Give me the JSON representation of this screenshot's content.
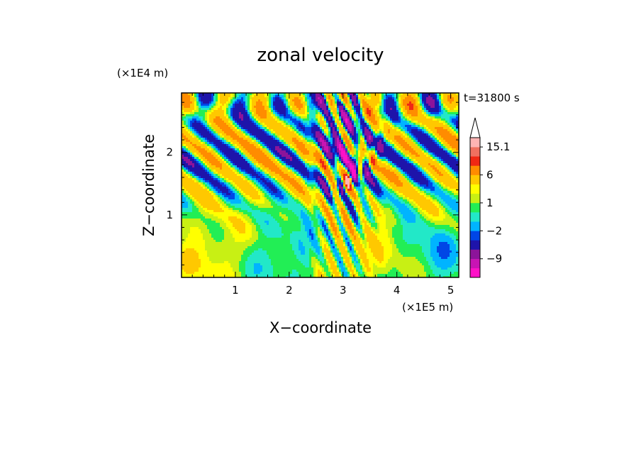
{
  "chart_data": {
    "type": "heatmap",
    "title": "zonal velocity",
    "xlabel": "X−coordinate",
    "ylabel": "Z−coordinate",
    "x_unit": "(×1E5 m)",
    "y_unit": "(×1E4 m)",
    "time_label": "t=31800 s",
    "xlim": [
      0,
      5.15
    ],
    "ylim": [
      0,
      2.95
    ],
    "x_ticks": [
      "1",
      "2",
      "3",
      "4",
      "5"
    ],
    "x_tick_values": [
      1,
      2,
      3,
      4,
      5
    ],
    "y_ticks": [
      "1",
      "2"
    ],
    "y_tick_values": [
      1,
      2
    ],
    "colorbar": {
      "labels": [
        "15.1",
        "6",
        "1",
        "−2",
        "−9"
      ],
      "label_values": [
        15.1,
        6,
        1,
        -2,
        -9
      ],
      "levels": [
        -15,
        -12,
        -9,
        -6,
        -3,
        -2,
        -1,
        0,
        1,
        2,
        3,
        6,
        9,
        12,
        15.1
      ],
      "colors": [
        "#ff10c8",
        "#c814b4",
        "#8c149a",
        "#1e14aa",
        "#0046e6",
        "#00b4ff",
        "#22e8c8",
        "#22ee55",
        "#c8f014",
        "#ffff00",
        "#ffc800",
        "#ff8c00",
        "#f02814",
        "#f07060",
        "#ffb4b4"
      ]
    }
  }
}
